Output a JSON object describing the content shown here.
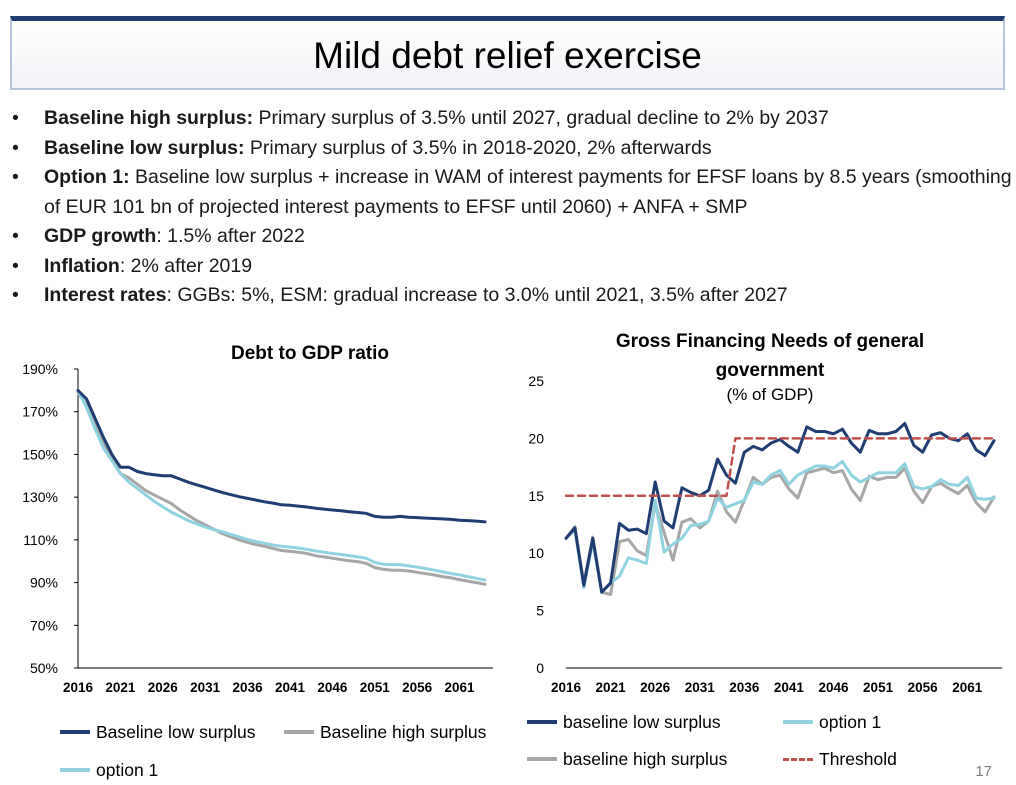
{
  "page": {
    "title": "Mild debt relief exercise",
    "page_number": "17"
  },
  "bullets": [
    {
      "bold": "Baseline high surplus:",
      "text": " Primary surplus of 3.5% until 2027, gradual decline to 2% by 2037"
    },
    {
      "bold": "Baseline low surplus:",
      "text": " Primary surplus of 3.5% in 2018-2020, 2% afterwards"
    },
    {
      "bold": "Option 1:",
      "text": " Baseline low surplus + increase in WAM of interest payments for EFSF loans by 8.5 years (smoothing of EUR 101 bn of projected interest payments to EFSF until 2060) + ANFA + SMP"
    },
    {
      "bold": "GDP growth",
      "text": ": 1.5% after 2022"
    },
    {
      "bold": "Inflation",
      "text": ": 2% after 2019"
    },
    {
      "bold": "Interest rates",
      "text": ": GGBs: 5%, ESM: gradual increase to 3.0% until 2021, 3.5% after 2027"
    }
  ],
  "colors": {
    "navy": "#1f3d73",
    "gray": "#a6a6a6",
    "lightblue": "#8fd3e0",
    "threshold": "#c0504d"
  },
  "chart_data": [
    {
      "type": "line",
      "title": "Debt to GDP ratio",
      "ylim": [
        50,
        190
      ],
      "yticks": [
        50,
        70,
        90,
        110,
        130,
        150,
        170,
        190
      ],
      "ytick_labels": [
        "50%",
        "70%",
        "90%",
        "110%",
        "130%",
        "150%",
        "170%",
        "190%"
      ],
      "xticks": [
        "2016",
        "2021",
        "2026",
        "2031",
        "2036",
        "2041",
        "2046",
        "2051",
        "2056",
        "2061"
      ],
      "x": [
        2016,
        2017,
        2018,
        2019,
        2020,
        2021,
        2022,
        2023,
        2024,
        2025,
        2026,
        2027,
        2028,
        2029,
        2030,
        2031,
        2032,
        2033,
        2034,
        2035,
        2036,
        2037,
        2038,
        2039,
        2040,
        2041,
        2042,
        2043,
        2044,
        2045,
        2046,
        2047,
        2048,
        2049,
        2050,
        2051,
        2052,
        2053,
        2054,
        2055,
        2056,
        2057,
        2058,
        2059,
        2060,
        2061,
        2062,
        2063,
        2064
      ],
      "series": [
        {
          "name": "Baseline low surplus",
          "color": "#1f3d73",
          "values": [
            180,
            176,
            167,
            158,
            150,
            144,
            144,
            142,
            141,
            140.5,
            140,
            140,
            138.5,
            137,
            135.8,
            134.6,
            133.4,
            132.2,
            131.2,
            130.2,
            129.4,
            128.6,
            127.8,
            127.2,
            126.4,
            126.2,
            125.8,
            125.4,
            124.8,
            124.4,
            124,
            123.6,
            123.2,
            122.8,
            122.4,
            121,
            120.6,
            120.6,
            121,
            120.6,
            120.4,
            120.2,
            120,
            119.8,
            119.6,
            119.2,
            119,
            118.8,
            118.4
          ]
        },
        {
          "name": "Baseline high surplus",
          "color": "#a6a6a6",
          "values": [
            179,
            173,
            164,
            155,
            148,
            141,
            139,
            136,
            133,
            131,
            129,
            127,
            124,
            121.5,
            119,
            117,
            115,
            113,
            111.5,
            110,
            108.8,
            107.8,
            107,
            106,
            105,
            104.6,
            104.2,
            103.6,
            102.6,
            102,
            101.4,
            100.8,
            100.2,
            99.8,
            99,
            97,
            96.2,
            95.8,
            95.8,
            95.4,
            94.8,
            94.2,
            93.6,
            92.8,
            92.2,
            91.4,
            90.6,
            90,
            89.2
          ]
        },
        {
          "name": "option 1",
          "color": "#8fd3e0",
          "values": [
            180,
            172,
            162,
            153,
            147,
            141,
            137,
            134,
            131,
            128,
            125.5,
            123,
            121,
            119,
            117.5,
            116,
            114.8,
            113.8,
            112.6,
            111.4,
            110.2,
            109.2,
            108.4,
            107.6,
            107,
            106.6,
            106.2,
            105.6,
            104.8,
            104.2,
            103.6,
            103.2,
            102.6,
            102,
            101.4,
            99.4,
            98.6,
            98.4,
            98.4,
            97.8,
            97.2,
            96.6,
            95.8,
            95,
            94.2,
            93.6,
            92.8,
            92,
            91.2
          ]
        }
      ]
    },
    {
      "type": "line",
      "title": "Gross Financing Needs of general government",
      "subtitle": "(% of  GDP)",
      "ylim": [
        0,
        25
      ],
      "yticks": [
        0,
        5,
        10,
        15,
        20,
        25
      ],
      "ytick_labels": [
        "0",
        "5",
        "10",
        "15",
        "20",
        "25"
      ],
      "xticks": [
        "2016",
        "2021",
        "2026",
        "2031",
        "2036",
        "2041",
        "2046",
        "2051",
        "2056",
        "2061"
      ],
      "x": [
        2016,
        2017,
        2018,
        2019,
        2020,
        2021,
        2022,
        2023,
        2024,
        2025,
        2026,
        2027,
        2028,
        2029,
        2030,
        2031,
        2032,
        2033,
        2034,
        2035,
        2036,
        2037,
        2038,
        2039,
        2040,
        2041,
        2042,
        2043,
        2044,
        2045,
        2046,
        2047,
        2048,
        2049,
        2050,
        2051,
        2052,
        2053,
        2054,
        2055,
        2056,
        2057,
        2058,
        2059,
        2060,
        2061,
        2062,
        2063,
        2064
      ],
      "series": [
        {
          "name": "baseline low surplus",
          "color": "#1f3d73",
          "dash": false,
          "values": [
            11.3,
            12.2,
            7.2,
            11.3,
            6.6,
            7.4,
            12.6,
            12.0,
            12.1,
            11.7,
            16.2,
            12.8,
            12.2,
            15.7,
            15.3,
            15.0,
            15.5,
            18.2,
            16.8,
            16.1,
            18.8,
            19.3,
            19.0,
            19.6,
            19.9,
            19.3,
            18.8,
            21.0,
            20.6,
            20.6,
            20.4,
            20.8,
            19.6,
            18.8,
            20.7,
            20.4,
            20.4,
            20.6,
            21.3,
            19.4,
            18.8,
            20.3,
            20.5,
            20.0,
            19.8,
            20.4,
            19.0,
            18.5,
            19.8
          ]
        },
        {
          "name": "option 1",
          "color": "#8fd3e0",
          "dash": false,
          "values": [
            11.3,
            12.0,
            7.0,
            11.0,
            6.6,
            7.4,
            8.0,
            9.6,
            9.4,
            9.1,
            14.6,
            10.1,
            10.8,
            11.3,
            12.4,
            12.5,
            12.8,
            14.8,
            14.0,
            14.3,
            14.6,
            16.2,
            16.0,
            16.8,
            17.2,
            16.0,
            16.8,
            17.2,
            17.6,
            17.6,
            17.4,
            18.0,
            16.8,
            16.2,
            16.6,
            17.0,
            17.0,
            17.0,
            17.8,
            15.8,
            15.6,
            15.8,
            16.4,
            16.0,
            15.9,
            16.6,
            14.8,
            14.7,
            14.8
          ]
        },
        {
          "name": "baseline  high surplus",
          "color": "#a6a6a6",
          "dash": false,
          "values": [
            11.3,
            12.3,
            7.4,
            11.4,
            6.6,
            6.4,
            11.0,
            11.2,
            10.2,
            9.8,
            14.3,
            11.8,
            9.4,
            12.7,
            13.0,
            12.2,
            12.8,
            15.4,
            13.6,
            12.7,
            14.6,
            16.6,
            16.0,
            16.6,
            16.8,
            15.6,
            14.8,
            17.0,
            17.2,
            17.4,
            17.0,
            17.2,
            15.6,
            14.6,
            16.7,
            16.4,
            16.6,
            16.6,
            17.4,
            15.4,
            14.4,
            15.8,
            16.1,
            15.6,
            15.2,
            15.9,
            14.4,
            13.6,
            14.9
          ]
        },
        {
          "name": "Threshold",
          "color": "#c0504d",
          "dash": true,
          "values": [
            15,
            15,
            15,
            15,
            15,
            15,
            15,
            15,
            15,
            15,
            15,
            15,
            15,
            15,
            15,
            15,
            15,
            15,
            15,
            20,
            20,
            20,
            20,
            20,
            20,
            20,
            20,
            20,
            20,
            20,
            20,
            20,
            20,
            20,
            20,
            20,
            20,
            20,
            20,
            20,
            20,
            20,
            20,
            20,
            20,
            20,
            20,
            20,
            20
          ]
        }
      ]
    }
  ]
}
